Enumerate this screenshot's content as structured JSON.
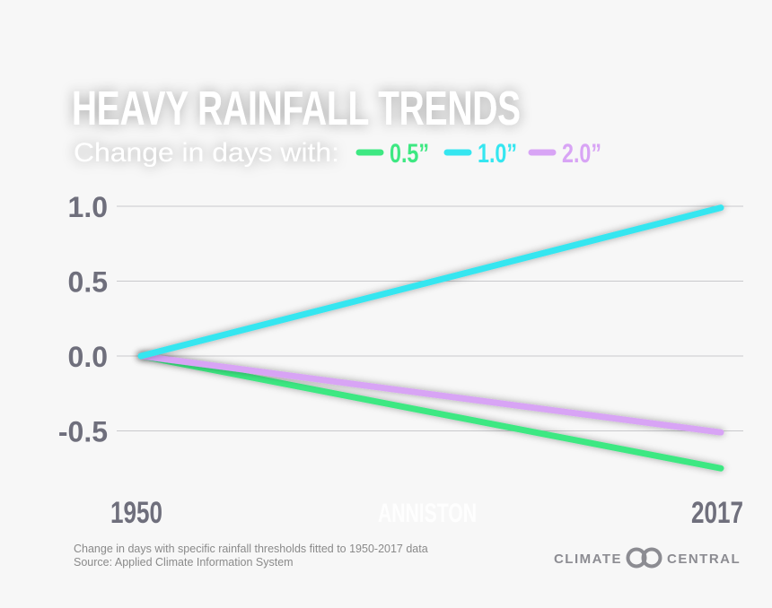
{
  "title": "HEAVY RAINFALL TRENDS",
  "subtitle": "Change in days with:",
  "location": "ANNISTON",
  "footnote": {
    "line1": "Change in days with specific rainfall thresholds fitted to 1950-2017 data",
    "line2": "Source: Applied Climate Information System"
  },
  "brand": {
    "left": "CLIMATE",
    "right": "CENTRAL",
    "logo_icon": "linked-circles-logo"
  },
  "chart_data": {
    "type": "line",
    "x": [
      1950,
      2017
    ],
    "x_tick_labels": [
      "1950",
      "2017"
    ],
    "y_ticks": [
      "1.0",
      "0.5",
      "0.0",
      "-0.5"
    ],
    "y_tick_values": [
      1.0,
      0.5,
      0.0,
      -0.5
    ],
    "ylim": [
      -0.8,
      1.05
    ],
    "grid": true,
    "legend_position": "top-left",
    "series": [
      {
        "name": "0.5”",
        "values": [
          0.0,
          -0.75
        ],
        "color": "#3ee882"
      },
      {
        "name": "1.0”",
        "values": [
          0.0,
          0.99
        ],
        "color": "#35e6f0"
      },
      {
        "name": "2.0”",
        "values": [
          0.0,
          -0.51
        ],
        "color": "#d8a4f5"
      }
    ]
  }
}
